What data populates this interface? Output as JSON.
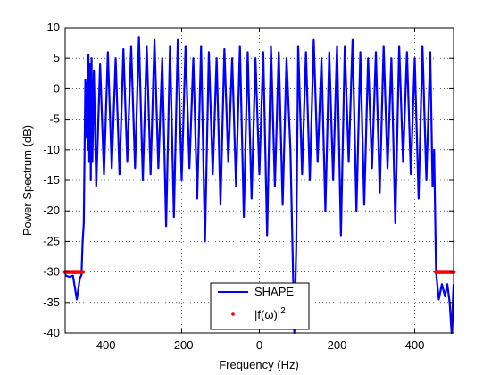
{
  "chart_data": {
    "type": "line",
    "xlabel": "Frequency (Hz)",
    "ylabel": "Power Spectrum (dB)",
    "xlim": [
      -500,
      500
    ],
    "ylim": [
      -40,
      10
    ],
    "x_ticks": [
      -400,
      -200,
      0,
      200,
      400
    ],
    "y_ticks": [
      10,
      5,
      0,
      -5,
      -10,
      -15,
      -20,
      -25,
      -30,
      -35,
      -40
    ],
    "x_tick_labels": [
      "-400",
      "-200",
      "0",
      "200",
      "400"
    ],
    "y_tick_labels": [
      "10",
      "5",
      "0",
      "-5",
      "-10",
      "-15",
      "-20",
      "-25",
      "-30",
      "-35",
      "-40"
    ],
    "grid": true,
    "grid_style": "dotted",
    "legend_position": "bottom-center",
    "series": [
      {
        "name": "SHAPE",
        "style": "line",
        "color": "#0000ff",
        "x": [
          -500,
          -490,
          -480,
          -470,
          -462,
          -458,
          -455,
          -452,
          -448,
          -446,
          -444,
          -442,
          -440,
          -438,
          -436,
          -434,
          -432,
          -430,
          -426,
          -420,
          -410,
          -400,
          -390,
          -380,
          -370,
          -360,
          -350,
          -340,
          -330,
          -320,
          -310,
          -300,
          -290,
          -280,
          -270,
          -260,
          -250,
          -240,
          -230,
          -220,
          -210,
          -200,
          -190,
          -180,
          -170,
          -160,
          -150,
          -140,
          -130,
          -120,
          -110,
          -100,
          -90,
          -80,
          -70,
          -60,
          -50,
          -40,
          -30,
          -20,
          -10,
          0,
          10,
          20,
          30,
          40,
          50,
          60,
          70,
          80,
          85,
          90,
          95,
          100,
          110,
          120,
          130,
          140,
          150,
          160,
          170,
          180,
          190,
          200,
          210,
          220,
          230,
          240,
          250,
          260,
          270,
          280,
          290,
          300,
          310,
          320,
          330,
          340,
          350,
          360,
          370,
          380,
          390,
          400,
          410,
          420,
          430,
          440,
          446,
          450,
          455,
          458,
          462,
          470,
          478,
          484,
          490,
          495,
          500
        ],
        "y": [
          -30.5,
          -30.8,
          -30.6,
          -34.5,
          -31,
          -30.5,
          -25,
          -22,
          1.5,
          -8,
          1,
          -10,
          5.5,
          -12,
          4,
          -15,
          5,
          -12,
          3,
          -16,
          4,
          -14,
          6,
          -13,
          5,
          -14,
          6.5,
          -12,
          7,
          -13,
          8.5,
          -15,
          7,
          -14,
          8,
          -13,
          5,
          -22.5,
          7,
          -21,
          8,
          -15,
          7,
          -13,
          5,
          -18,
          7,
          -25,
          6,
          -14,
          5,
          -19,
          6.5,
          -12,
          5,
          -16,
          7,
          -21,
          6,
          -18,
          5,
          -14,
          6,
          -24,
          7,
          -16,
          6,
          -19,
          5,
          -10,
          -25,
          -40,
          -26,
          7,
          -14,
          6,
          -15,
          8,
          -12,
          5,
          -20,
          6,
          -15,
          7,
          -24,
          7,
          -12,
          8,
          -20,
          6,
          -19,
          5,
          -13,
          6,
          -17,
          7,
          -13,
          5,
          -22,
          7,
          -12,
          6,
          -14,
          5,
          -18,
          7,
          -15,
          6,
          -16,
          -10,
          -30,
          -32,
          -34.5,
          -32,
          -34,
          -32,
          -35,
          -40,
          -32
        ]
      },
      {
        "name": "|f(ω)|²",
        "style": "markers",
        "color": "#ff0000",
        "x": [
          -500,
          -495,
          -490,
          -485,
          -480,
          -475,
          -470,
          -465,
          -460,
          -455,
          455,
          460,
          465,
          470,
          475,
          480,
          485,
          490,
          495,
          500
        ],
        "y": [
          -30,
          -30,
          -30,
          -30,
          -30,
          -30,
          -30,
          -30,
          -30,
          -30,
          -30,
          -30,
          -30,
          -30,
          -30,
          -30,
          -30,
          -30,
          -30,
          -30
        ]
      }
    ],
    "legend": {
      "entries": [
        {
          "label": "SHAPE",
          "style": "line",
          "color": "#0000ff"
        },
        {
          "label": "|f(ω)|",
          "superscript": "2",
          "style": "marker",
          "color": "#ff0000"
        }
      ]
    }
  }
}
